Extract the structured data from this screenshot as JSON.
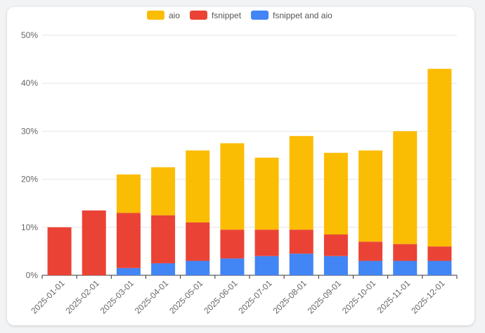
{
  "chart_data": {
    "type": "bar",
    "stacked": true,
    "categories": [
      "2025-01-01",
      "2025-02-01",
      "2025-03-01",
      "2025-04-01",
      "2025-05-01",
      "2025-06-01",
      "2025-07-01",
      "2025-08-01",
      "2025-09-01",
      "2025-10-01",
      "2025-11-01",
      "2025-12-01"
    ],
    "series": [
      {
        "name": "fsnippet and aio",
        "color": "#4285f4",
        "values": [
          0,
          0,
          1.5,
          2.5,
          3,
          3.5,
          4,
          4.5,
          4,
          3,
          3,
          3
        ]
      },
      {
        "name": "fsnippet",
        "color": "#ea4335",
        "values": [
          10,
          13.5,
          11.5,
          10,
          8,
          6,
          5.5,
          5,
          4.5,
          4,
          3.5,
          3
        ]
      },
      {
        "name": "aio",
        "color": "#fbbc04",
        "values": [
          0,
          0,
          8,
          10,
          15,
          18,
          15,
          19.5,
          17,
          19,
          23.5,
          37
        ]
      }
    ],
    "legend_order": [
      "aio",
      "fsnippet",
      "fsnippet and aio"
    ],
    "legend_position": "top",
    "ylim": [
      0,
      50
    ],
    "yticks": [
      "0%",
      "10%",
      "20%",
      "30%",
      "40%",
      "50%"
    ],
    "grid": true
  }
}
